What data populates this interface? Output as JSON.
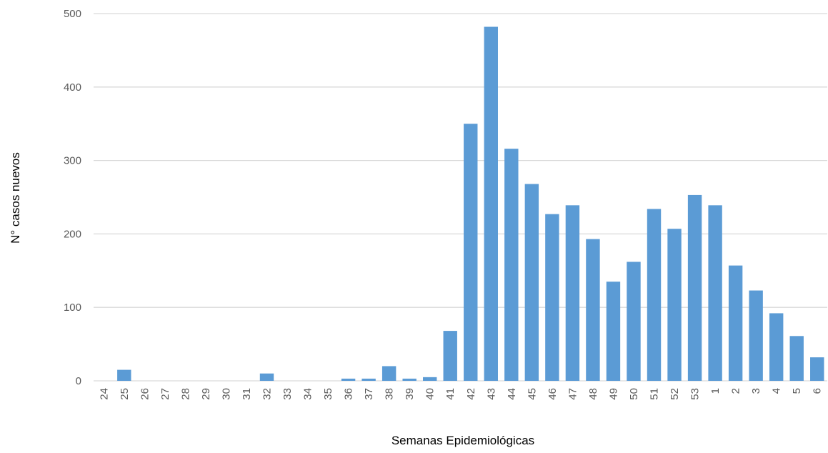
{
  "chart_data": {
    "type": "bar",
    "title": "",
    "xlabel": "Semanas Epidemiológicas",
    "ylabel": "N° casos nuevos",
    "ylim": [
      0,
      500
    ],
    "yticks": [
      0,
      100,
      200,
      300,
      400,
      500
    ],
    "grid": true,
    "categories": [
      "24",
      "25",
      "26",
      "27",
      "28",
      "29",
      "30",
      "31",
      "32",
      "33",
      "34",
      "35",
      "36",
      "37",
      "38",
      "39",
      "40",
      "41",
      "42",
      "43",
      "44",
      "45",
      "46",
      "47",
      "48",
      "49",
      "50",
      "51",
      "52",
      "53",
      "1",
      "2",
      "3",
      "4",
      "5",
      "6"
    ],
    "values": [
      0,
      15,
      0,
      0,
      0,
      0,
      0,
      0,
      10,
      0,
      0,
      0,
      3,
      3,
      20,
      3,
      5,
      68,
      350,
      482,
      316,
      268,
      227,
      239,
      193,
      135,
      162,
      234,
      207,
      253,
      239,
      157,
      123,
      92,
      61,
      32
    ]
  },
  "colors": {
    "bar": "#5B9BD5",
    "grid": "#D9D9D9",
    "tick_text": "#595959",
    "axis_title": "#000000"
  }
}
